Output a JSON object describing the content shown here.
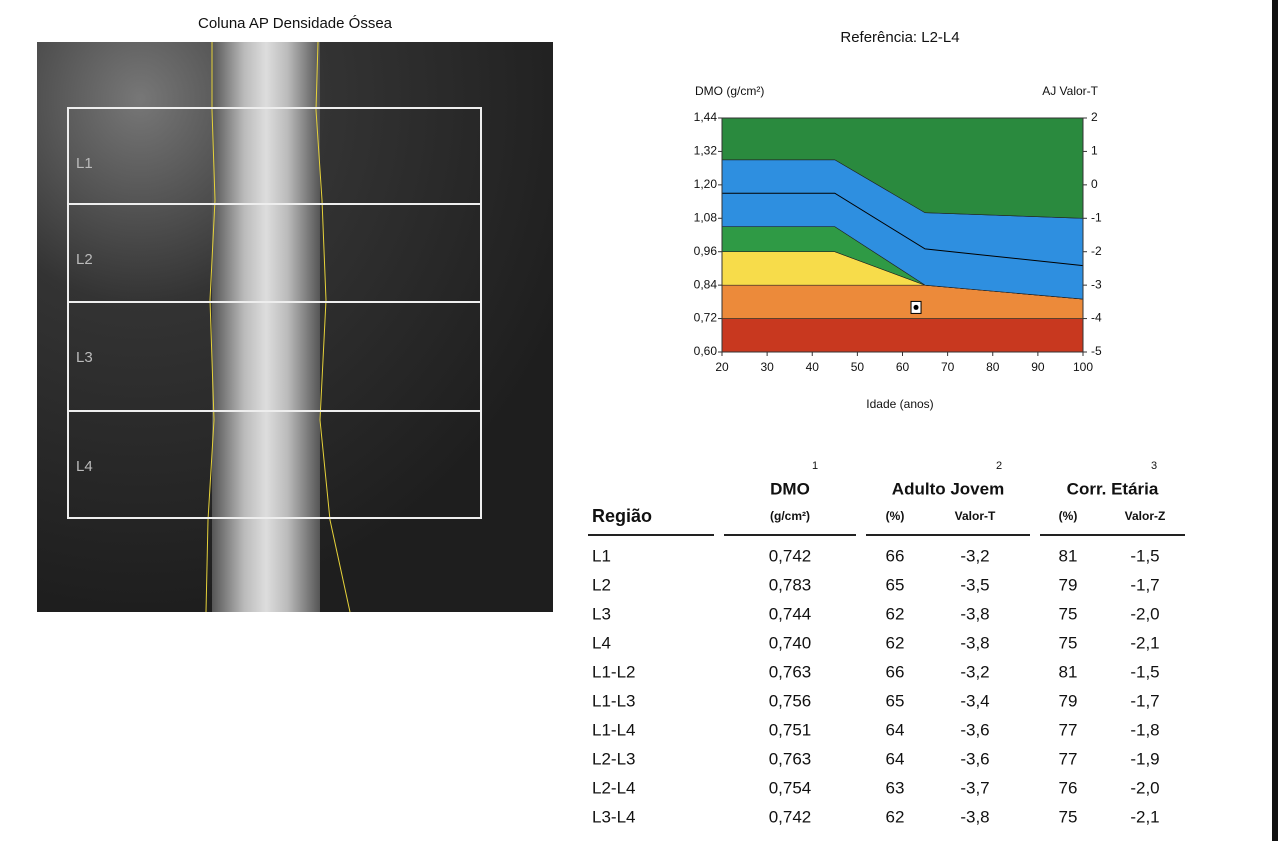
{
  "image": {
    "title": "Coluna AP Densidade Óssea",
    "regions": [
      "L1",
      "L2",
      "L3",
      "L4"
    ]
  },
  "chart_data": {
    "type": "area",
    "title": "Referência: L2-L4",
    "y_label": "DMO (g/cm²)",
    "y2_label": "AJ Valor-T",
    "x_label": "Idade (anos)",
    "x": [
      20,
      45,
      65,
      100
    ],
    "xlim": [
      20,
      100
    ],
    "xticks": [
      20,
      30,
      40,
      50,
      60,
      70,
      80,
      90,
      100
    ],
    "ylim": [
      0.6,
      1.44
    ],
    "yticks": [
      {
        "value": 0.6,
        "label": "0,60"
      },
      {
        "value": 0.72,
        "label": "0,72"
      },
      {
        "value": 0.84,
        "label": "0,84"
      },
      {
        "value": 0.96,
        "label": "0,96"
      },
      {
        "value": 1.08,
        "label": "1,08"
      },
      {
        "value": 1.2,
        "label": "1,20"
      },
      {
        "value": 1.32,
        "label": "1,32"
      },
      {
        "value": 1.44,
        "label": "1,44"
      }
    ],
    "y2lim": [
      -5,
      2
    ],
    "y2ticks": [
      -5,
      -4,
      -3,
      -2,
      -1,
      0,
      1,
      2
    ],
    "series": [
      {
        "color": "#c8381f",
        "values": [
          0.72,
          0.72,
          0.72,
          0.72
        ]
      },
      {
        "color": "#ec8a3a",
        "values": [
          0.84,
          0.84,
          0.84,
          0.79
        ]
      },
      {
        "color": "#f7dc4a",
        "values": [
          0.96,
          0.96,
          0.84,
          0.79
        ]
      },
      {
        "color": "#2f9a45",
        "values": [
          1.05,
          1.05,
          0.84,
          0.79
        ]
      },
      {
        "color": "#2e8fe0",
        "values": [
          1.29,
          1.29,
          1.1,
          1.08
        ]
      },
      {
        "color": "#2a8a3e",
        "values": [
          1.44,
          1.44,
          1.44,
          1.44
        ]
      },
      {
        "color": "#000000",
        "style": "line",
        "values": [
          1.17,
          1.17,
          0.97,
          0.91
        ]
      }
    ],
    "patient": {
      "x": 63,
      "y": 0.76
    }
  },
  "table": {
    "region_header": "Região",
    "groups": [
      {
        "title": "DMO",
        "note": "1",
        "columns": [
          "(g/cm²)"
        ]
      },
      {
        "title": "Adulto Jovem",
        "note": "2",
        "columns": [
          "(%)",
          "Valor-T"
        ]
      },
      {
        "title": "Corr. Etária",
        "note": "3",
        "columns": [
          "(%)",
          "Valor-Z"
        ]
      }
    ],
    "rows": [
      [
        "L1",
        "0,742",
        "66",
        "-3,2",
        "81",
        "-1,5"
      ],
      [
        "L2",
        "0,783",
        "65",
        "-3,5",
        "79",
        "-1,7"
      ],
      [
        "L3",
        "0,744",
        "62",
        "-3,8",
        "75",
        "-2,0"
      ],
      [
        "L4",
        "0,740",
        "62",
        "-3,8",
        "75",
        "-2,1"
      ],
      [
        "L1-L2",
        "0,763",
        "66",
        "-3,2",
        "81",
        "-1,5"
      ],
      [
        "L1-L3",
        "0,756",
        "65",
        "-3,4",
        "79",
        "-1,7"
      ],
      [
        "L1-L4",
        "0,751",
        "64",
        "-3,6",
        "77",
        "-1,8"
      ],
      [
        "L2-L3",
        "0,763",
        "64",
        "-3,6",
        "77",
        "-1,9"
      ],
      [
        "L2-L4",
        "0,754",
        "63",
        "-3,7",
        "76",
        "-2,0"
      ],
      [
        "L3-L4",
        "0,742",
        "62",
        "-3,8",
        "75",
        "-2,1"
      ]
    ]
  }
}
